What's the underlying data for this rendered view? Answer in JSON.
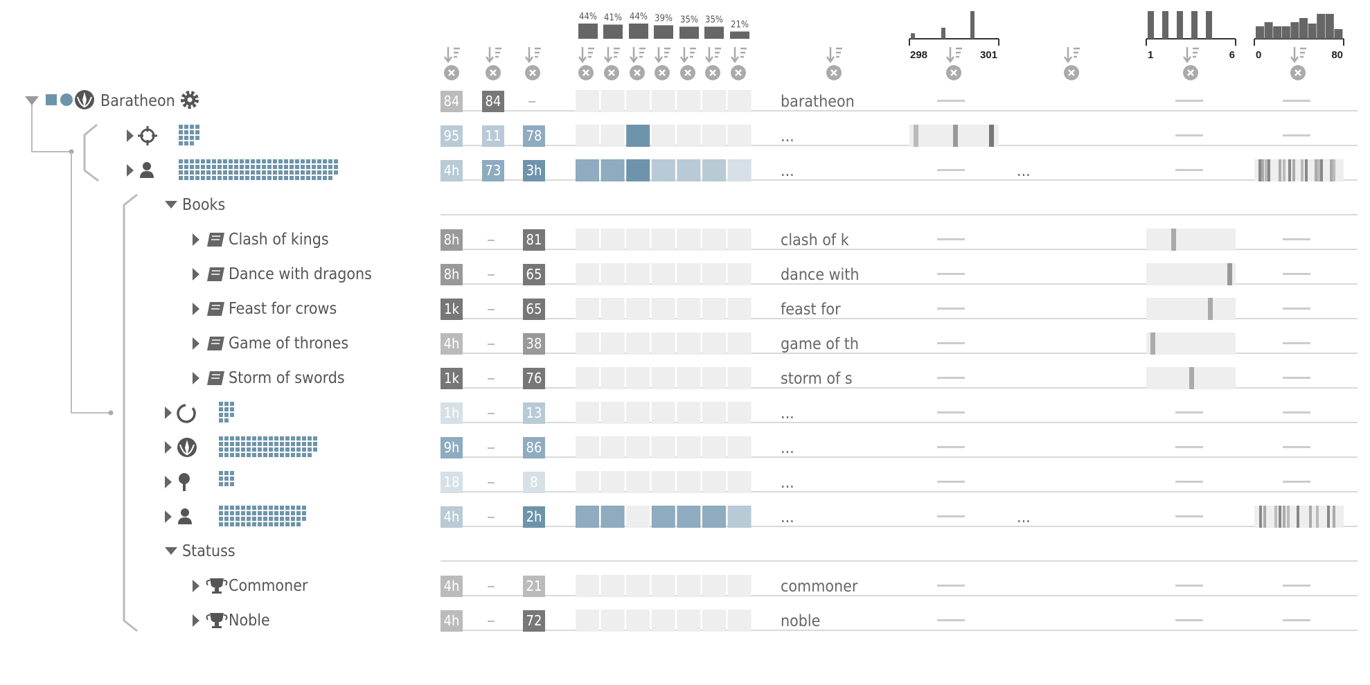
{
  "tree": {
    "root_label": "Baratheon",
    "group_books": "Books",
    "group_status": "Statuss",
    "books": [
      "Clash of kings",
      "Dance with dragons",
      "Feast for crows",
      "Game of thrones",
      "Storm of swords"
    ],
    "statuses": [
      "Commoner",
      "Noble"
    ]
  },
  "header": {
    "pct_labels": [
      "44%",
      "41%",
      "44%",
      "39%",
      "35%",
      "35%",
      "21%"
    ],
    "pct_values": [
      44,
      41,
      44,
      39,
      35,
      35,
      21
    ],
    "hist1_min": "298",
    "hist1_max": "301",
    "hist2_min": "1",
    "hist2_max": "6",
    "hist3_min": "0",
    "hist3_max": "80",
    "hist2_bars": [
      1,
      1,
      1,
      1,
      1,
      0
    ],
    "hist3_bars": [
      0.45,
      0.6,
      0.45,
      0.45,
      0.6,
      0.75,
      0.55,
      0.9,
      0.9,
      0.35
    ]
  },
  "col1": [
    "84",
    "95",
    "4h",
    "8h",
    "8h",
    "1k",
    "4h",
    "1k",
    "1h",
    "9h",
    "18",
    "4h",
    "4h",
    "4h"
  ],
  "col2": [
    "84",
    "11",
    "73",
    "-",
    "-",
    "-",
    "-",
    "-",
    "-",
    "-",
    "-",
    "-",
    "-",
    "-"
  ],
  "col3": [
    "-",
    "78",
    "3h",
    "81",
    "65",
    "65",
    "38",
    "76",
    "13",
    "86",
    "8",
    "2h",
    "21",
    "72"
  ],
  "text_col": [
    "baratheon",
    "...",
    "...",
    "clash of k",
    "dance with",
    "feast for",
    "game of th",
    "storm of s",
    "...",
    "...",
    "...",
    "...",
    "commoner",
    "noble"
  ],
  "extra_text": [
    "...",
    "..."
  ],
  "colors": {
    "blue_dark": "#6e94ab",
    "blue_mid": "#8eabbf",
    "blue_light": "#b8cad6",
    "blue_pale": "#d6e0e6",
    "gray_dark": "#777777",
    "gray_mid": "#999999",
    "gray_light": "#bbbbbb",
    "cell_empty": "#eeeeee"
  }
}
